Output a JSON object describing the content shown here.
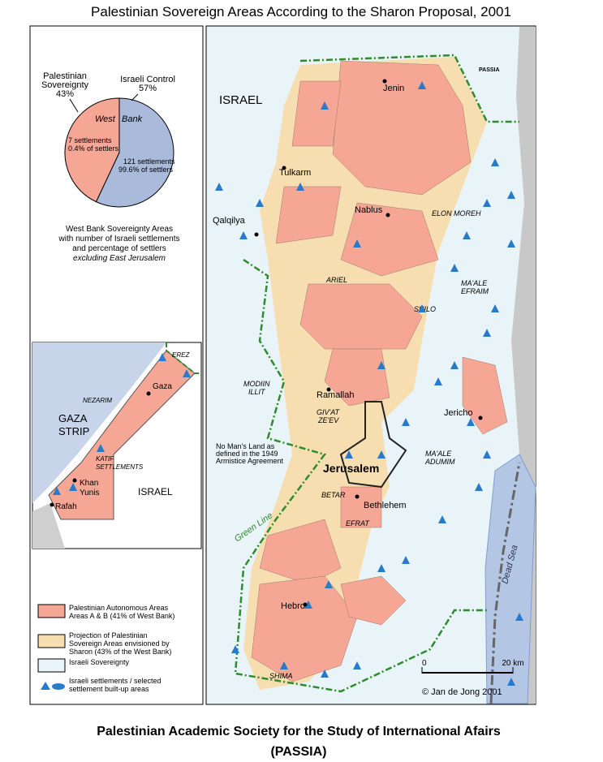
{
  "title": "Palestinian Sovereign Areas According to the Sharon Proposal, 2001",
  "pie": {
    "labels": [
      [
        "Palestinian",
        "Sovereignty"
      ],
      [
        "Israeli Control"
      ]
    ],
    "values": [
      43,
      57
    ],
    "value_labels": [
      "43%",
      "57%"
    ],
    "colors": [
      "#f6a695",
      "#a9badb"
    ],
    "inner": [
      "West",
      "Bank"
    ],
    "notes": [
      [
        "7 settlements",
        "0.4% of settlers"
      ],
      [
        "121 settlements",
        "99.6% of settlers"
      ]
    ]
  },
  "caption": [
    "West Bank Sovereignty Areas",
    "with number of Israeli settlements",
    "and percentage of settlers",
    "excluding East Jerusalem"
  ],
  "gaza": {
    "erez": "EREZ",
    "gaza": "Gaza",
    "nezarim": "NEZARIM",
    "strip": [
      "GAZA",
      "STRIP"
    ],
    "katif": [
      "KATIF",
      "SETTLEMENTS"
    ],
    "khan_yunis": [
      "Khan",
      "Yunis"
    ],
    "israel": "ISRAEL",
    "rafah": "Rafah"
  },
  "legend": [
    [
      "Palestinian Autonomous Areas",
      "Areas A & B (41% of West Bank)"
    ],
    [
      "Projection of Palestinian",
      "Sovereign Areas envisioned by",
      "Sharon (43% of the West Bank)"
    ],
    [
      "Israeli Sovereignty"
    ],
    [
      "Israeli settlements / selected",
      "settlement built-up areas"
    ]
  ],
  "map": {
    "israel": "ISRAEL",
    "passia": "PASSIA",
    "jenin": "Jenin",
    "tulkarm": "Tulkarm",
    "nablus": "Nablus",
    "elon_moreh": "ELON MOREH",
    "qalqilya": "Qalqilya",
    "ariel": "ARIEL",
    "maale_efraim": [
      "MA'ALE",
      "EFRAIM"
    ],
    "shilo": "SHILO",
    "modiin": [
      "MODIIN",
      "ILLIT"
    ],
    "ramallah": "Ramallah",
    "givat": [
      "GIV'AT",
      "ZE'EV"
    ],
    "jericho": "Jericho",
    "no_mans_land": [
      "No Man's Land as",
      "defined in the 1949",
      "Armistice Agreement"
    ],
    "jerusalem": "Jerusalem",
    "maale_adumim": [
      "MA'ALE",
      "ADUMIM"
    ],
    "betar": "BETAR",
    "bethlehem": "Bethlehem",
    "efrat": "EFRAT",
    "green_line": "Green Line",
    "dead_sea": "Dead Sea",
    "hebron": "Hebron",
    "shima": "SHIMA",
    "copyright": "© Jan de Jong 2001",
    "scale": {
      "lim": [
        0,
        20
      ],
      "ticks": [
        0,
        {
          "value": 20,
          "label": "20 km"
        }
      ]
    }
  },
  "footer": [
    "Palestinian Academic Society for the Study of International  Afairs",
    "(PASSIA)"
  ]
}
